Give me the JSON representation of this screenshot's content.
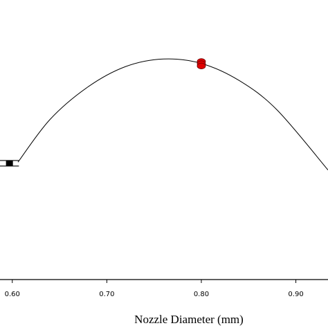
{
  "chart_data": {
    "type": "line",
    "xlabel": "Nozzle Diameter (mm)",
    "ylabel": "",
    "title": "",
    "xlim": [
      0.587,
      0.934
    ],
    "ylim": [
      0,
      1
    ],
    "xticks": [
      0.6,
      0.7,
      0.8,
      0.9
    ],
    "xtick_labels": [
      "0.60",
      "0.70",
      "0.80",
      "0.90"
    ],
    "grid": false,
    "series": [
      {
        "x": [
          0.606,
          0.64,
          0.68,
          0.72,
          0.76,
          0.8,
          0.84,
          0.88,
          0.934
        ],
        "y": [
          0.42,
          0.573,
          0.689,
          0.762,
          0.789,
          0.773,
          0.712,
          0.607,
          0.392
        ]
      }
    ],
    "markers": [
      {
        "shape": "circle",
        "color": "#e00000",
        "x": 0.8,
        "y": 0.78
      },
      {
        "shape": "circle",
        "color": "#e00000",
        "x": 0.8,
        "y": 0.772
      },
      {
        "shape": "circle",
        "color": "#e00000",
        "x": 0.8,
        "y": 0.764
      }
    ],
    "error_bar": {
      "x": 0.597,
      "y": 0.416,
      "xerr": 0.01
    },
    "colors": {
      "line": "#000000",
      "design_points": "#e00000"
    }
  }
}
